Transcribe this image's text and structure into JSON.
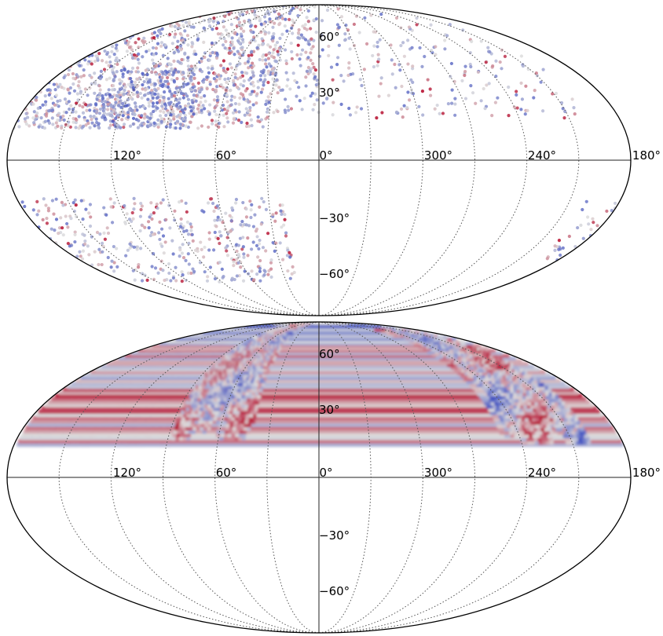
{
  "colors": {
    "background": "#ffffff",
    "outline": "#000000",
    "graticule": "#555555",
    "cmap_low": "#3b4cc0",
    "cmap_mid": "#dddddd",
    "cmap_high": "#b40426"
  },
  "chart_data": [
    {
      "type": "scatter",
      "projection": "mollweide",
      "longitude_tick_labels": [
        "120°",
        "60°",
        "0°",
        "300°",
        "240°",
        "180°"
      ],
      "latitude_tick_labels": [
        "60°",
        "30°",
        "−30°",
        "−60°"
      ],
      "longitude_ticks_deg": [
        120,
        60,
        0,
        300,
        240,
        180
      ],
      "latitude_ticks_deg": [
        60,
        30,
        -30,
        -60
      ],
      "longitude_direction": "increasing-left",
      "grid": true,
      "colormap": "coolwarm",
      "coverage_regions": [
        {
          "lon": [
            30,
            180
          ],
          "lat": [
            15,
            88
          ],
          "point_count": 1150
        },
        {
          "lon": [
            0,
            30
          ],
          "lat": [
            22,
            88
          ],
          "point_count": 110
        },
        {
          "lon": [
            200,
            360
          ],
          "lat": [
            20,
            88
          ],
          "point_count": 220
        },
        {
          "lon": [
            20,
            180
          ],
          "lat": [
            -62,
            -18
          ],
          "point_count": 420
        },
        {
          "lon": [
            180,
            200
          ],
          "lat": [
            -50,
            -18
          ],
          "point_count": 30
        }
      ],
      "cluster_region": {
        "lon": [
          75,
          140
        ],
        "lat": [
          15,
          45
        ],
        "point_count": 250
      }
    },
    {
      "type": "heatmap",
      "projection": "mollweide",
      "longitude_tick_labels": [
        "120°",
        "60°",
        "0°",
        "300°",
        "240°",
        "180°"
      ],
      "latitude_tick_labels": [
        "60°",
        "30°",
        "−30°",
        "−60°"
      ],
      "longitude_ticks_deg": [
        120,
        60,
        0,
        300,
        240,
        180
      ],
      "latitude_ticks_deg": [
        60,
        30,
        -30,
        -60
      ],
      "longitude_direction": "increasing-left",
      "grid": true,
      "colormap": "coolwarm",
      "coverage_regions": [
        {
          "lon": [
            88,
            180
          ],
          "lat": [
            15,
            88
          ]
        },
        {
          "lon": [
            40,
            88
          ],
          "lat": [
            18,
            88
          ]
        },
        {
          "lon": [
            200,
            250
          ],
          "lat": [
            16,
            80
          ]
        }
      ]
    }
  ]
}
